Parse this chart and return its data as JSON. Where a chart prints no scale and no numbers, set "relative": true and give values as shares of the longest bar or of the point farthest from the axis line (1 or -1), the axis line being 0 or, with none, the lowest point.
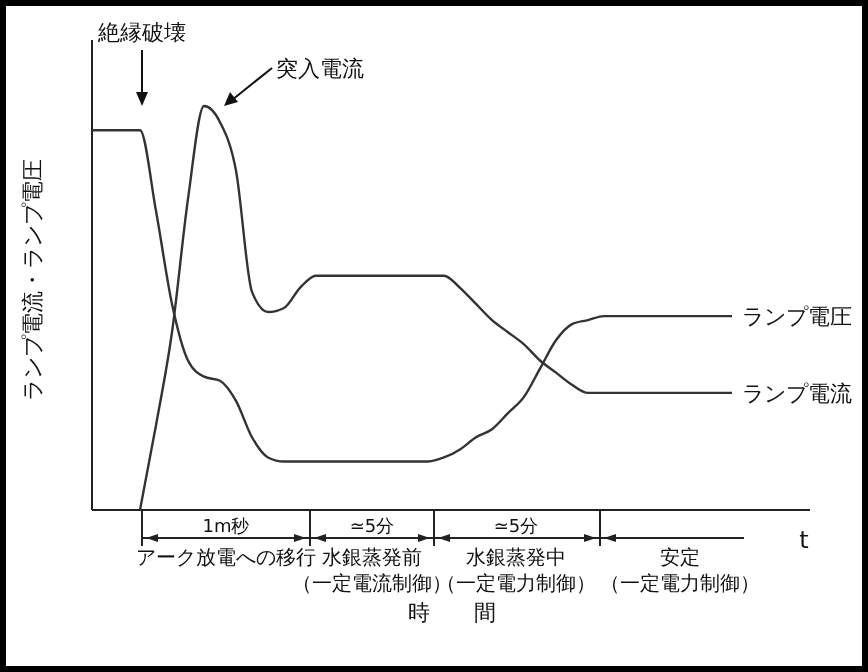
{
  "chart_data": {
    "type": "line",
    "relative": true,
    "xlabel": "時　　間",
    "ylabel": "ランプ電流・ランプ電圧",
    "categories": [
      null,
      null,
      null,
      null,
      null,
      null,
      null,
      null,
      null,
      null,
      null,
      null,
      null,
      null,
      null,
      null,
      null,
      null,
      null,
      null,
      null,
      null,
      null,
      null,
      null,
      null,
      null,
      null,
      null,
      null,
      null,
      null,
      null,
      null,
      null,
      null,
      null,
      null,
      null,
      null,
      null
    ],
    "series": [
      {
        "name": "ランプ電圧",
        "color": "#333333",
        "values": [
          0.94,
          0.94,
          0.94,
          0.94,
          0.74,
          0.51,
          0.37,
          0.33,
          0.32,
          0.27,
          0.18,
          0.13,
          0.12,
          0.12,
          0.12,
          0.12,
          0.12,
          0.12,
          0.12,
          0.12,
          0.12,
          0.12,
          0.13,
          0.15,
          0.18,
          0.2,
          0.24,
          0.28,
          0.35,
          0.42,
          0.46,
          0.47,
          0.48,
          0.48,
          0.48,
          0.48,
          0.48,
          0.48,
          0.48,
          0.48,
          0.48
        ]
      },
      {
        "name": "ランプ電流",
        "color": "#333333",
        "values": [
          null,
          null,
          null,
          0,
          0.21,
          0.44,
          0.77,
          1,
          0.96,
          0.84,
          0.54,
          0.49,
          0.5,
          0.55,
          0.58,
          0.58,
          0.58,
          0.58,
          0.58,
          0.58,
          0.58,
          0.58,
          0.58,
          0.55,
          0.51,
          0.47,
          0.44,
          0.41,
          0.37,
          0.34,
          0.31,
          0.29,
          0.29,
          0.29,
          0.29,
          0.29,
          0.29,
          0.29,
          0.29,
          0.29,
          0.29
        ]
      }
    ],
    "annotations": [
      "絶縁破壊",
      "突入電流",
      "1m秒",
      "アーク放電への移行",
      "≃5分",
      "水銀蒸発前",
      "（一定電流制御）",
      "≃5分",
      "水銀蒸発中",
      "（一定電力制御）",
      "安定",
      "（一定電力制御）",
      "t"
    ]
  }
}
